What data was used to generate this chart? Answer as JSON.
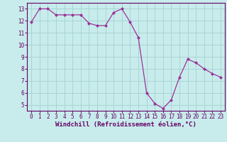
{
  "x": [
    0,
    1,
    2,
    3,
    4,
    5,
    6,
    7,
    8,
    9,
    10,
    11,
    12,
    13,
    14,
    15,
    16,
    17,
    18,
    19,
    20,
    21,
    22,
    23
  ],
  "y": [
    11.9,
    13.0,
    13.0,
    12.5,
    12.5,
    12.5,
    12.5,
    11.8,
    11.6,
    11.6,
    12.7,
    13.0,
    11.9,
    10.6,
    6.0,
    5.1,
    4.7,
    5.4,
    7.3,
    8.8,
    8.5,
    8.0,
    7.6,
    7.3
  ],
  "line_color": "#993399",
  "marker": "D",
  "marker_size": 2.0,
  "bg_color": "#c8ecec",
  "grid_color": "#aad4d4",
  "xlabel": "Windchill (Refroidissement éolien,°C)",
  "ylim": [
    4.5,
    13.5
  ],
  "yticks": [
    5,
    6,
    7,
    8,
    9,
    10,
    11,
    12,
    13
  ],
  "xticks": [
    0,
    1,
    2,
    3,
    4,
    5,
    6,
    7,
    8,
    9,
    10,
    11,
    12,
    13,
    14,
    15,
    16,
    17,
    18,
    19,
    20,
    21,
    22,
    23
  ],
  "tick_fontsize": 5.5,
  "xlabel_fontsize": 6.5,
  "axis_color": "#660066",
  "linewidth": 0.9
}
